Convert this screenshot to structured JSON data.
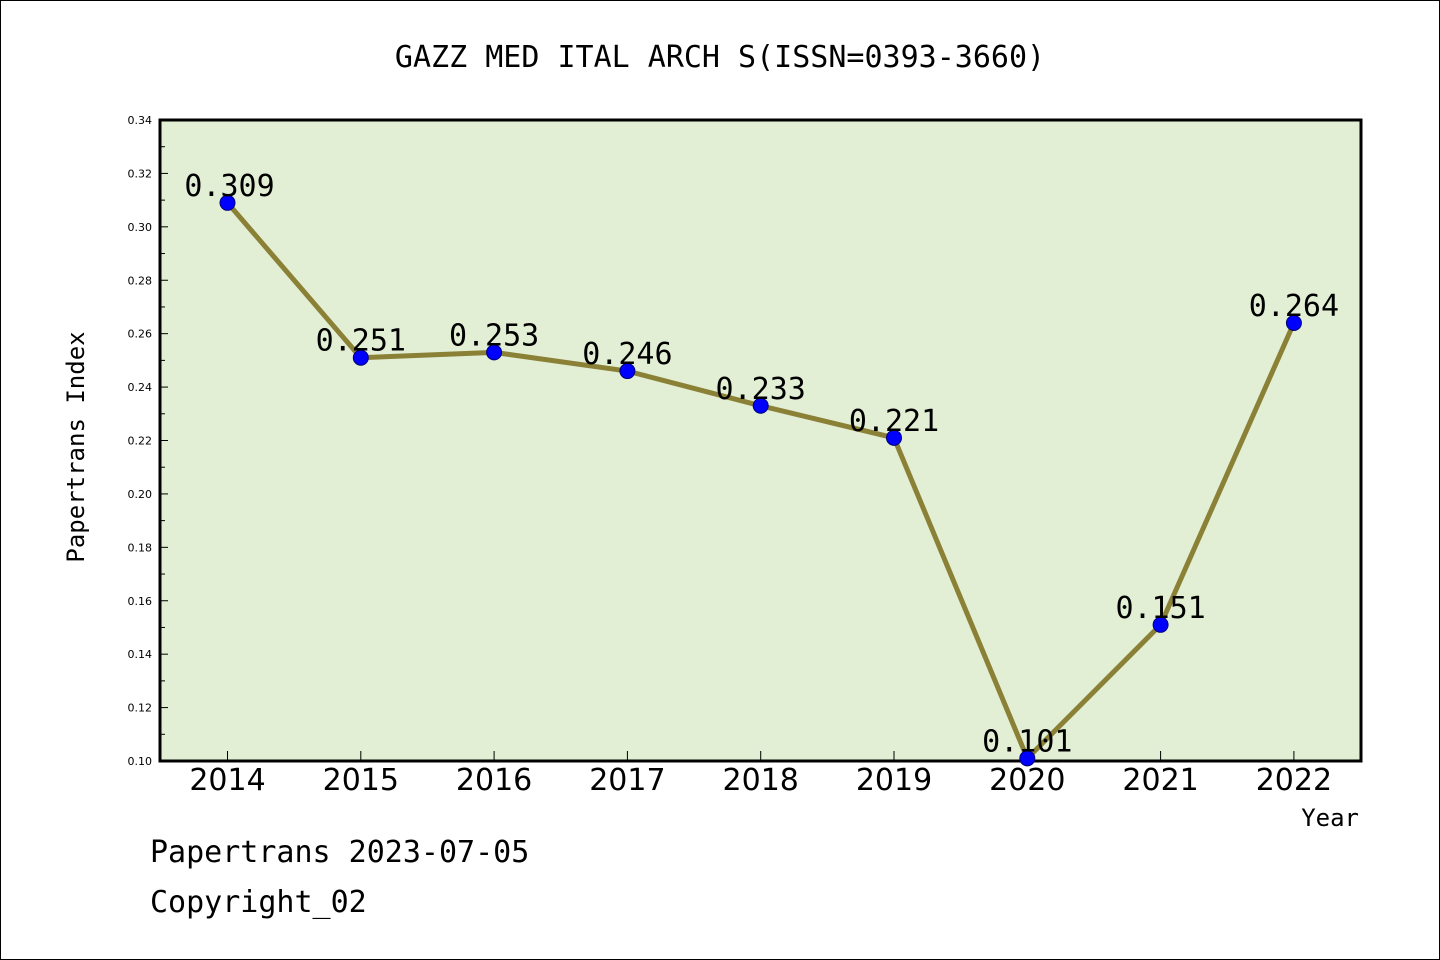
{
  "chart_data": {
    "type": "line",
    "title": "GAZZ MED ITAL ARCH S(ISSN=0393-3660)",
    "xlabel": "Year",
    "ylabel": "Papertrans Index",
    "categories": [
      "2014",
      "2015",
      "2016",
      "2017",
      "2018",
      "2019",
      "2020",
      "2021",
      "2022"
    ],
    "values": [
      0.309,
      0.251,
      0.253,
      0.246,
      0.233,
      0.221,
      0.101,
      0.151,
      0.264
    ],
    "data_labels": [
      "0.309",
      "0.251",
      "0.253",
      "0.246",
      "0.233",
      "0.221",
      "0.101",
      "0.151",
      "0.264"
    ],
    "ylim": [
      0.1,
      0.34
    ],
    "yticks": [
      "0.10",
      "0.12",
      "0.14",
      "0.16",
      "0.18",
      "0.20",
      "0.22",
      "0.24",
      "0.26",
      "0.28",
      "0.30",
      "0.32",
      "0.34"
    ],
    "grid": false,
    "colors": {
      "plot_background": "#e2efd4",
      "line": "#8b8136",
      "marker": "#0000ff"
    }
  },
  "footer": {
    "line1": "Papertrans 2023-07-05",
    "line2": "Copyright_02"
  }
}
